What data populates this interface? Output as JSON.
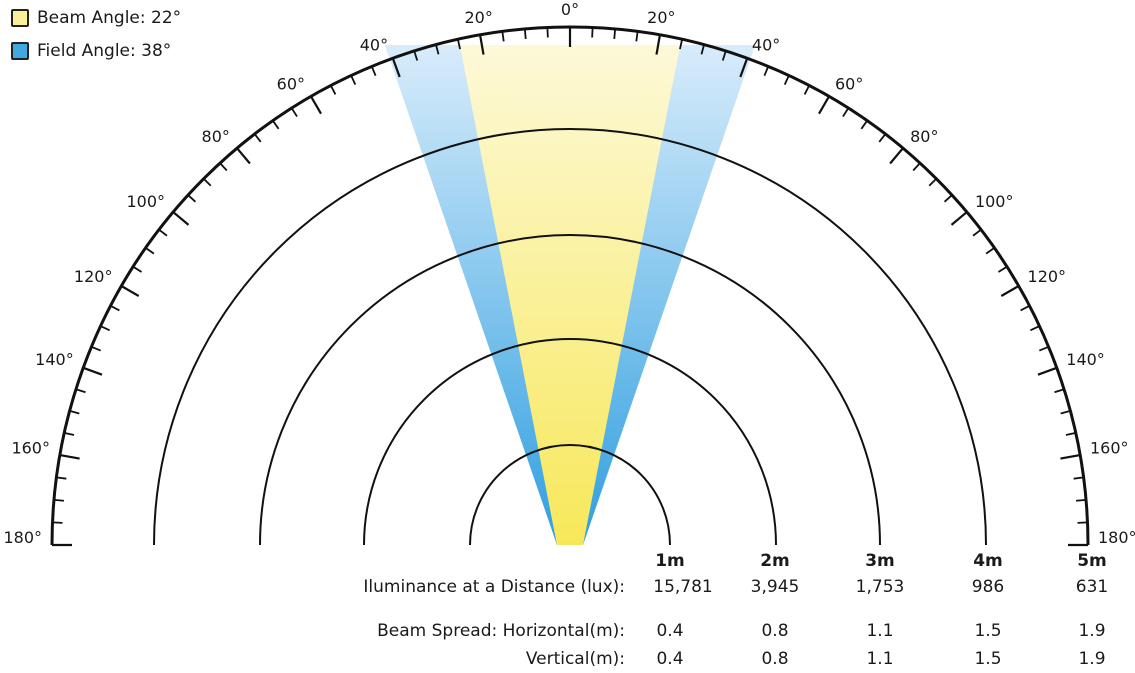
{
  "legend": {
    "beam": {
      "label": "Beam Angle: 22°",
      "color": "#fbf09a"
    },
    "field": {
      "label": "Field Angle: 38°",
      "color": "#3fa9e0"
    }
  },
  "beam_angle_deg": 22,
  "field_angle_deg": 38,
  "dial_labels": [
    {
      "text": "0°",
      "angle": 0
    },
    {
      "text": "20°",
      "angle": -20
    },
    {
      "text": "20°",
      "angle": 20
    },
    {
      "text": "40°",
      "angle": -40
    },
    {
      "text": "40°",
      "angle": 40
    },
    {
      "text": "60°",
      "angle": -60
    },
    {
      "text": "60°",
      "angle": 60
    },
    {
      "text": "80°",
      "angle": -80
    },
    {
      "text": "80°",
      "angle": 80
    },
    {
      "text": "100°",
      "angle": -100
    },
    {
      "text": "100°",
      "angle": 100
    },
    {
      "text": "120°",
      "angle": -120
    },
    {
      "text": "120°",
      "angle": 120
    },
    {
      "text": "140°",
      "angle": -140
    },
    {
      "text": "140°",
      "angle": 140
    },
    {
      "text": "160°",
      "angle": -160
    },
    {
      "text": "160°",
      "angle": 160
    },
    {
      "text": "180°",
      "angle": -180
    },
    {
      "text": "180°",
      "angle": 180
    }
  ],
  "distances": [
    "1m",
    "2m",
    "3m",
    "4m",
    "5m"
  ],
  "rows": [
    {
      "label": "Iluminance at a Distance (lux):",
      "values": [
        "15,781",
        "3,945",
        "1,753",
        "986",
        "631"
      ]
    },
    {
      "label": "Beam Spread: Horizontal(m):",
      "values": [
        "0.4",
        "0.8",
        "1.1",
        "1.5",
        "1.9"
      ]
    },
    {
      "label": "Vertical(m):",
      "values": [
        "0.4",
        "0.8",
        "1.1",
        "1.5",
        "1.9"
      ]
    }
  ]
}
